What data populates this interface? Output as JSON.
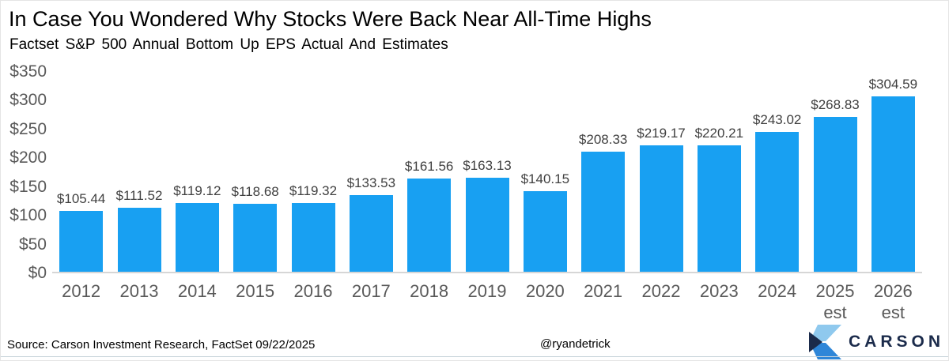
{
  "header": {
    "title": "In Case You Wondered Why Stocks Were Back Near All-Time Highs",
    "subtitle": "Factset S&P 500 Annual Bottom Up EPS Actual And Estimates"
  },
  "chart_data": {
    "type": "bar",
    "title": "In Case You Wondered Why Stocks Were Back Near All-Time Highs",
    "subtitle": "Factset S&P 500 Annual Bottom Up EPS Actual And Estimates",
    "ylim": [
      0,
      350
    ],
    "grid": false,
    "legend": null,
    "bar_color": "#18a0f2",
    "yticks": [
      {
        "value": 0,
        "label": "$0"
      },
      {
        "value": 50,
        "label": "$50"
      },
      {
        "value": 100,
        "label": "$100"
      },
      {
        "value": 150,
        "label": "$150"
      },
      {
        "value": 200,
        "label": "$200"
      },
      {
        "value": 250,
        "label": "$250"
      },
      {
        "value": 300,
        "label": "$300"
      },
      {
        "value": 350,
        "label": "$350"
      }
    ],
    "bars": [
      {
        "category": "2012",
        "note": "",
        "value": 105.44,
        "label": "$105.44"
      },
      {
        "category": "2013",
        "note": "",
        "value": 111.52,
        "label": "$111.52"
      },
      {
        "category": "2014",
        "note": "",
        "value": 119.12,
        "label": "$119.12"
      },
      {
        "category": "2015",
        "note": "",
        "value": 118.68,
        "label": "$118.68"
      },
      {
        "category": "2016",
        "note": "",
        "value": 119.32,
        "label": "$119.32"
      },
      {
        "category": "2017",
        "note": "",
        "value": 133.53,
        "label": "$133.53"
      },
      {
        "category": "2018",
        "note": "",
        "value": 161.56,
        "label": "$161.56"
      },
      {
        "category": "2019",
        "note": "",
        "value": 163.13,
        "label": "$163.13"
      },
      {
        "category": "2020",
        "note": "",
        "value": 140.15,
        "label": "$140.15"
      },
      {
        "category": "2021",
        "note": "",
        "value": 208.33,
        "label": "$208.33"
      },
      {
        "category": "2022",
        "note": "",
        "value": 219.17,
        "label": "$219.17"
      },
      {
        "category": "2023",
        "note": "",
        "value": 220.21,
        "label": "$220.21"
      },
      {
        "category": "2024",
        "note": "",
        "value": 243.02,
        "label": "$243.02"
      },
      {
        "category": "2025",
        "note": "est",
        "value": 268.83,
        "label": "$268.83"
      },
      {
        "category": "2026",
        "note": "est",
        "value": 304.59,
        "label": "$304.59"
      }
    ]
  },
  "footer": {
    "source": "Source: Carson Investment Research, FactSet 09/22/2025",
    "handle": "@ryandetrick",
    "logo_text": "CARSON"
  },
  "colors": {
    "bar": "#18a0f2",
    "axis_line": "#d6d6d6",
    "tick_text": "#595959",
    "value_text": "#404040",
    "logo_navy": "#1b2b4b",
    "logo_light_blue": "#8fc9ee",
    "logo_mid_blue": "#2e86d8"
  }
}
